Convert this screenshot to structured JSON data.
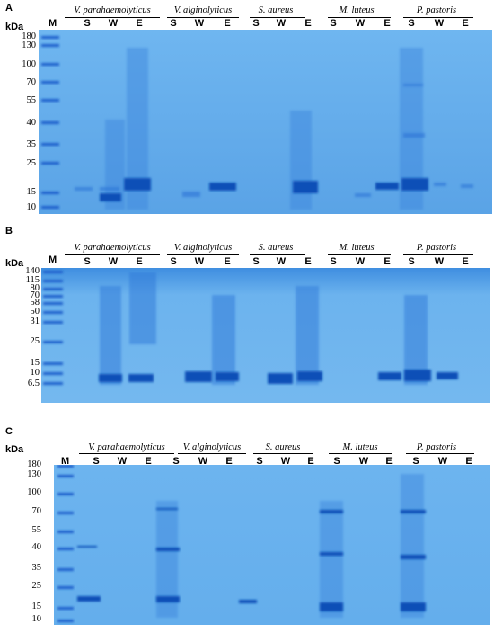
{
  "panels": [
    {
      "letter": "A",
      "kda_label": "kDa",
      "marker_label": "M",
      "species": [
        "V. parahaemolyticus",
        "V. alginolyticus",
        "S. aureus",
        "M. luteus",
        "P. pastoris"
      ],
      "lanes": [
        "S",
        "W",
        "E"
      ],
      "markers": [
        "180",
        "130",
        "100",
        "70",
        "55",
        "40",
        "35",
        "25",
        "15",
        "10"
      ]
    },
    {
      "letter": "B",
      "kda_label": "kDa",
      "marker_label": "M",
      "species": [
        "V. parahaemolyticus",
        "V. alginolyticus",
        "S. aureus",
        "M. luteus",
        "P. pastoris"
      ],
      "lanes": [
        "S",
        "W",
        "E"
      ],
      "markers": [
        "140",
        "115",
        "80",
        "70",
        "58",
        "50",
        "31",
        "25",
        "15",
        "10",
        "6.5"
      ]
    },
    {
      "letter": "C",
      "kda_label": "kDa",
      "marker_label": "M",
      "species": [
        "V. parahaemolyticus",
        "V. alginolyticus",
        "S. aureus",
        "M. luteus",
        "P. pastoris"
      ],
      "lanes": [
        "S",
        "W",
        "E"
      ],
      "markers": [
        "180",
        "130",
        "100",
        "70",
        "55",
        "40",
        "35",
        "25",
        "15",
        "10"
      ]
    }
  ],
  "colors": {
    "gel": "#5aa6e6",
    "gel_light": "#7dbcf0",
    "band": "#1f63c9",
    "band_strong": "#0f4fb8"
  }
}
